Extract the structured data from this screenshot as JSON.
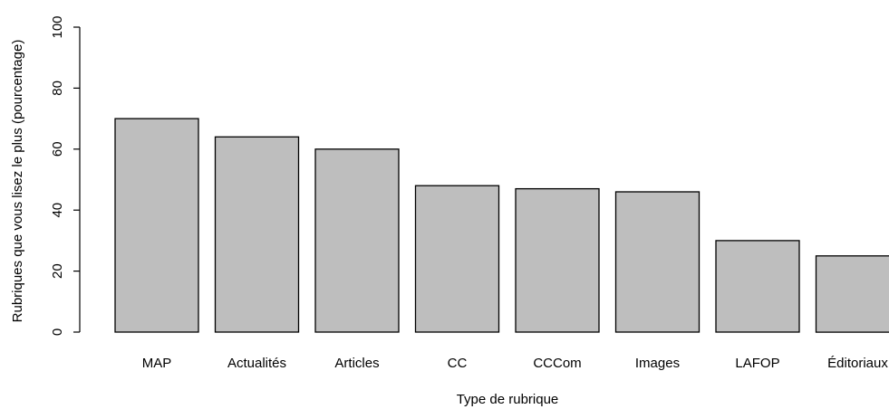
{
  "chart_data": {
    "type": "bar",
    "title": "",
    "xlabel": "Type de rubrique",
    "ylabel": "Rubriques que vous lisez le plus (pourcentage)",
    "ylim": [
      0,
      100
    ],
    "yticks": [
      "0",
      "20",
      "40",
      "60",
      "80",
      "100"
    ],
    "categories": [
      "MAP",
      "Actualités",
      "Articles",
      "CC",
      "CCCom",
      "Images",
      "LAFOP",
      "Éditoriaux"
    ],
    "values": [
      70,
      64,
      60,
      48,
      47,
      46,
      30,
      25
    ],
    "bar_color": "#bebebe",
    "bar_stroke": "#000000",
    "grid": false,
    "legend": "none"
  }
}
